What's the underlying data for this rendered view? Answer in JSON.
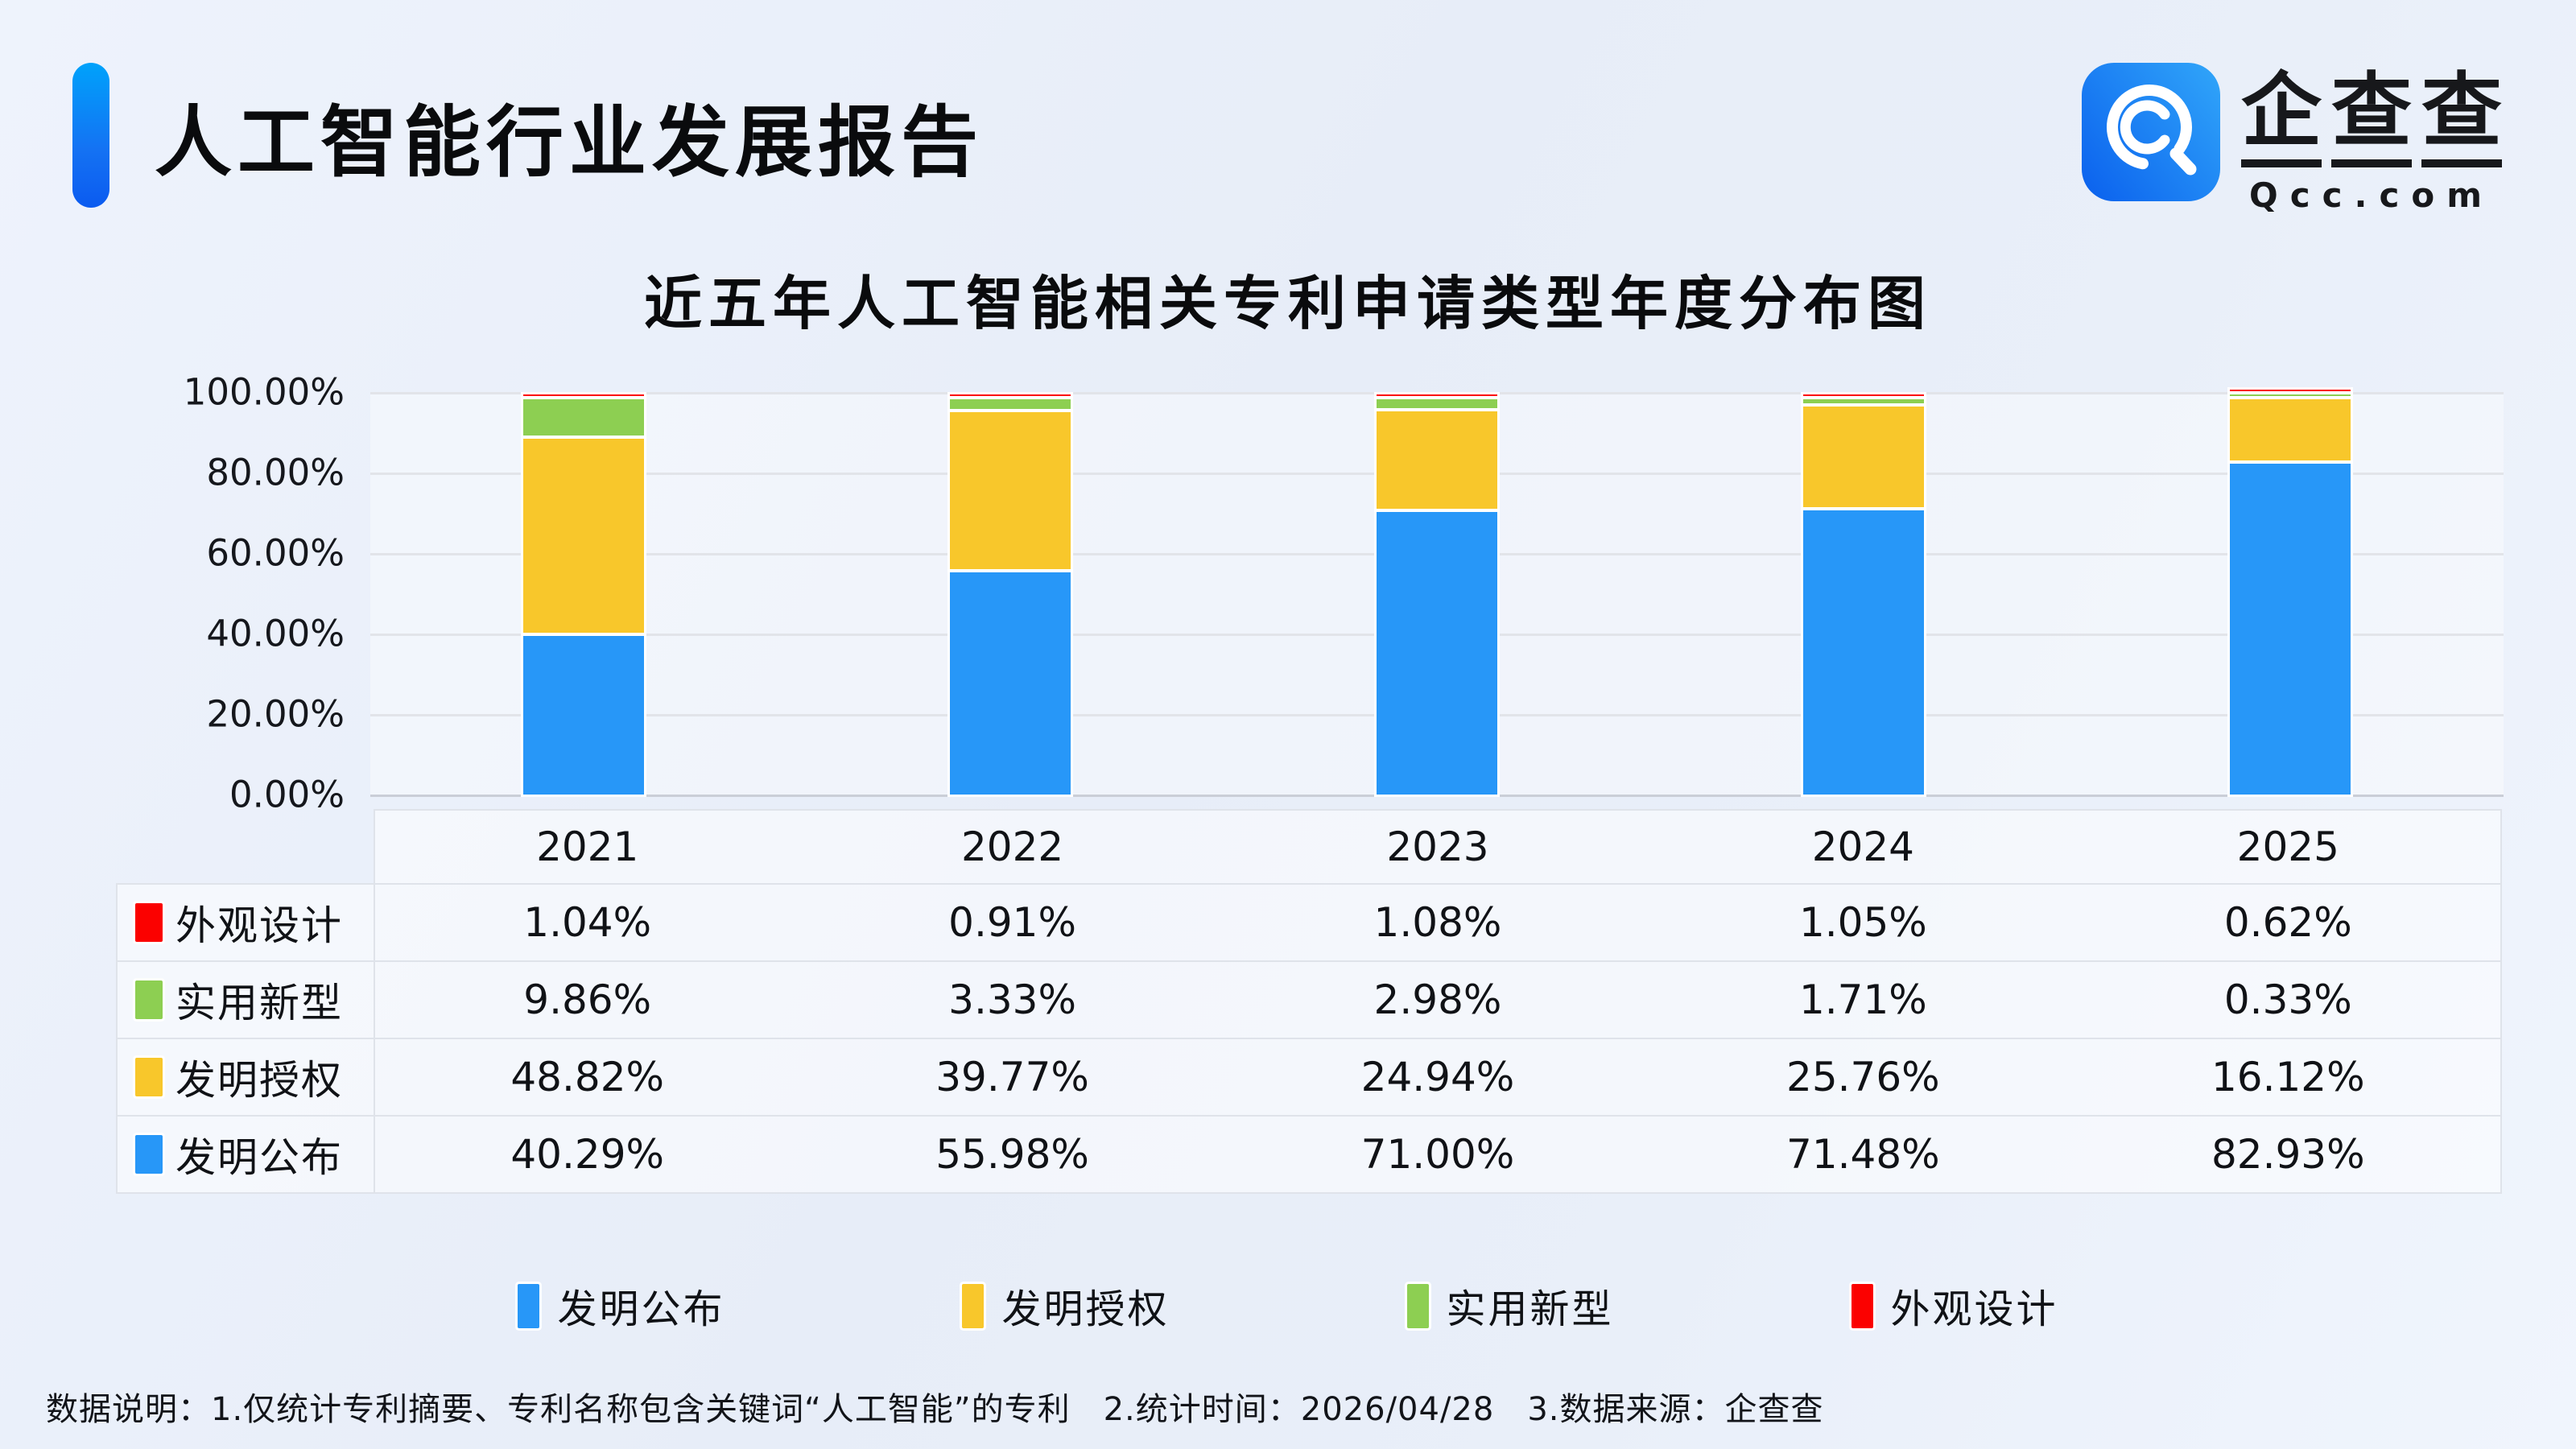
{
  "header": {
    "title": "人工智能行业发展报告",
    "logo": {
      "brand_cn": "企查查",
      "brand_en": "Qcc.com"
    }
  },
  "chart": {
    "title": "近五年人工智能相关专利申请类型年度分布图",
    "y_ticks": [
      "100.00%",
      "80.00%",
      "60.00%",
      "40.00%",
      "20.00%",
      "0.00%"
    ]
  },
  "chart_data": {
    "type": "bar",
    "stacked": true,
    "title": "近五年人工智能相关专利申请类型年度分布图",
    "categories": [
      "2021",
      "2022",
      "2023",
      "2024",
      "2025"
    ],
    "series": [
      {
        "name": "发明公布",
        "color": "#2797f8",
        "values": [
          40.29,
          55.98,
          71.0,
          71.48,
          82.93
        ]
      },
      {
        "name": "发明授权",
        "color": "#f8c72b",
        "values": [
          48.82,
          39.77,
          24.94,
          25.76,
          16.12
        ]
      },
      {
        "name": "实用新型",
        "color": "#8dcf52",
        "values": [
          9.86,
          3.33,
          2.98,
          1.71,
          0.33
        ]
      },
      {
        "name": "外观设计",
        "color": "#fb0100",
        "values": [
          1.04,
          0.91,
          1.08,
          1.05,
          0.62
        ]
      }
    ],
    "ylabel": "",
    "xlabel": "",
    "ylim": [
      0,
      100
    ],
    "grid": true,
    "legend_position": "bottom"
  },
  "table": {
    "rows": [
      {
        "label": "外观设计",
        "color": "#fb0100",
        "values": [
          "1.04%",
          "0.91%",
          "1.08%",
          "1.05%",
          "0.62%"
        ]
      },
      {
        "label": "实用新型",
        "color": "#8dcf52",
        "values": [
          "9.86%",
          "3.33%",
          "2.98%",
          "1.71%",
          "0.33%"
        ]
      },
      {
        "label": "发明授权",
        "color": "#f8c72b",
        "values": [
          "48.82%",
          "39.77%",
          "24.94%",
          "25.76%",
          "16.12%"
        ]
      },
      {
        "label": "发明公布",
        "color": "#2797f8",
        "values": [
          "40.29%",
          "55.98%",
          "71.00%",
          "71.48%",
          "82.93%"
        ]
      }
    ]
  },
  "legend": {
    "items": [
      {
        "label": "发明公布",
        "color": "#2797f8"
      },
      {
        "label": "发明授权",
        "color": "#f8c72b"
      },
      {
        "label": "实用新型",
        "color": "#8dcf52"
      },
      {
        "label": "外观设计",
        "color": "#fb0100"
      }
    ]
  },
  "footer": {
    "note": "数据说明：1.仅统计专利摘要、专利名称包含关键词“人工智能”的专利　2.统计时间：2026/04/28　3.数据来源：企查查"
  }
}
